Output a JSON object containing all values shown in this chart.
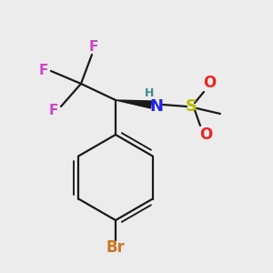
{
  "background_color": "#ececec",
  "bond_color": "#1a1a1a",
  "bond_width": 1.6,
  "colors": {
    "C": "#1a1a1a",
    "F": "#cc44cc",
    "N": "#2222ee",
    "H": "#448888",
    "S": "#bbbb00",
    "O": "#ee2222",
    "Br": "#cc7722"
  },
  "font_size": 11,
  "font_size_h": 9,
  "font_size_label": 10
}
